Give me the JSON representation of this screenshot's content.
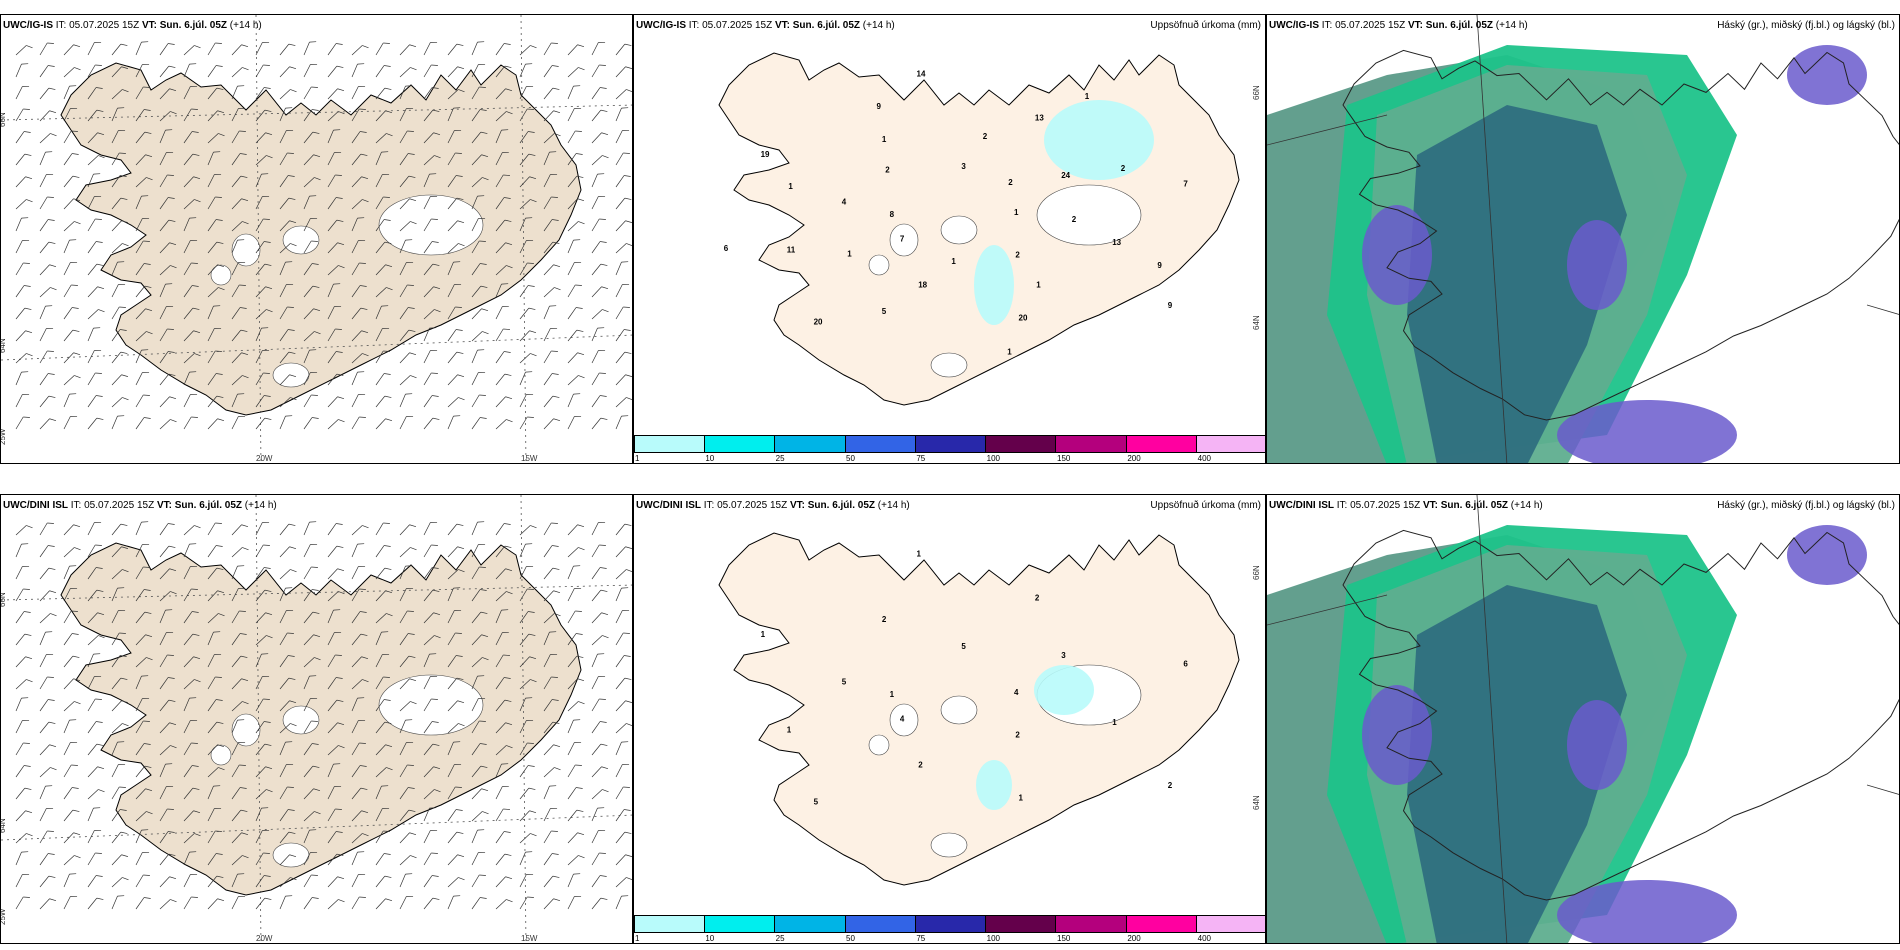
{
  "rows": [
    {
      "model": "UWC/IG-IS",
      "wind_panel": {
        "it_label": "IT:",
        "it_value": "05.07.2025 15Z",
        "vt_label": "VT:",
        "vt_value": "Sun. 6.júl. 05Z",
        "lead": "(+14 h)"
      },
      "precip_panel": {
        "it_label": "IT:",
        "it_value": "05.07.2025 15Z",
        "vt_label": "VT:",
        "vt_value": "Sun. 6.júl. 05Z",
        "lead": "(+14 h)",
        "title": "Uppsöfnuð úrkoma (mm)"
      },
      "cloud_panel": {
        "it_label": "IT:",
        "it_value": "05.07.2025 15Z",
        "vt_label": "VT:",
        "vt_value": "Sun. 6.júl. 05Z",
        "lead": "(+14 h)",
        "title": "Háský (gr.), miðský (fj.bl.) og lágský (bl.)"
      },
      "precip_values": [
        "1",
        "7",
        "3",
        "2",
        "4",
        "24",
        "18",
        "1",
        "13",
        "11",
        "13",
        "20",
        "19",
        "7",
        "20",
        "14",
        "9",
        "8",
        "2",
        "1",
        "2",
        "2",
        "1",
        "2",
        "1",
        "1",
        "2",
        "5",
        "9",
        "9",
        "6",
        "1",
        "1"
      ]
    },
    {
      "model": "UWC/DINI ISL",
      "wind_panel": {
        "it_label": "IT:",
        "it_value": "05.07.2025 15Z",
        "vt_label": "VT:",
        "vt_value": "Sun. 6.júl. 05Z",
        "lead": "(+14 h)"
      },
      "precip_panel": {
        "it_label": "IT:",
        "it_value": "05.07.2025 15Z",
        "vt_label": "VT:",
        "vt_value": "Sun. 6.júl. 05Z",
        "lead": "(+14 h)",
        "title": "Uppsöfnuð úrkoma (mm)"
      },
      "cloud_panel": {
        "it_label": "IT:",
        "it_value": "05.07.2025 15Z",
        "vt_label": "VT:",
        "vt_value": "Sun. 6.júl. 05Z",
        "lead": "(+14 h)",
        "title": "Háský (gr.), miðský (fj.bl.) og lágský (bl.)"
      },
      "precip_values": [
        "4",
        "4",
        "5",
        "2",
        "5",
        "3",
        "2",
        "2",
        "1",
        "1",
        "2",
        "1",
        "1",
        "6",
        "5",
        "1",
        "2",
        "1"
      ]
    }
  ],
  "axis_labels": {
    "lat_66": "66N",
    "lat_64": "64N",
    "lon_25": "25W",
    "lon_20": "20W",
    "lon_15": "15W"
  },
  "colorbar": {
    "ticks": [
      "1",
      "10",
      "25",
      "50",
      "75",
      "100",
      "150",
      "200",
      "400"
    ],
    "colors": [
      "#b8fbfb",
      "#00eeee",
      "#00b4e6",
      "#3264e6",
      "#2828aa",
      "#64004b",
      "#b4007d",
      "#ff00a0",
      "#f5b4f5"
    ]
  },
  "colors": {
    "land": "#ede0ce",
    "precip_land": "#fdf1e4",
    "glacier": "#ffffff",
    "low_cloud": "#2f6f7f",
    "mid_cloud": "#5fae8f",
    "high_cloud": "#6a5acd",
    "edge_cloud": "#1ec38a",
    "ocean_dark": "#5b9a88"
  }
}
